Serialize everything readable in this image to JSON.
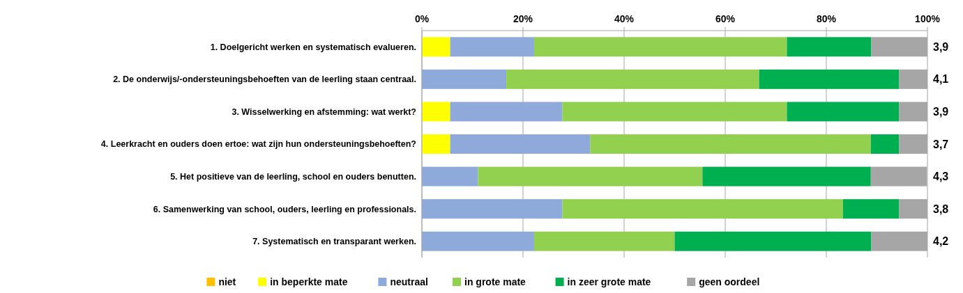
{
  "chart_data": {
    "type": "bar",
    "orientation": "horizontal",
    "stacked": true,
    "categories": [
      "1. Doelgericht werken en systematisch evalueren.",
      "2. De onderwijs/-ondersteuningsbehoeften van de leerling staan centraal.",
      "3. Wisselwerking en afstemming: wat werkt?",
      "4. Leerkracht en ouders doen ertoe: wat zijn hun ondersteuningsbehoeften?",
      "5. Het positieve van de leerling, school en ouders benutten.",
      "6. Samenwerking van school, ouders, leerling en professionals.",
      "7. Systematisch en transparant werken."
    ],
    "series": [
      {
        "name": "niet",
        "color": "#ffc000",
        "values": [
          0,
          0,
          0,
          0,
          0,
          0,
          0
        ]
      },
      {
        "name": "in beperkte mate",
        "color": "#ffff00",
        "values": [
          5.6,
          0,
          5.6,
          5.6,
          0,
          0,
          0
        ]
      },
      {
        "name": "neutraal",
        "color": "#8eaadb",
        "values": [
          16.6,
          16.7,
          22.2,
          27.7,
          11.1,
          27.8,
          22.2
        ]
      },
      {
        "name": "in grote mate",
        "color": "#92d050",
        "values": [
          50,
          50,
          44.4,
          55.5,
          44.4,
          55.5,
          27.8
        ]
      },
      {
        "name": "in zeer grote mate",
        "color": "#00b050",
        "values": [
          16.7,
          27.7,
          22.2,
          5.6,
          33.3,
          11.1,
          38.9
        ]
      },
      {
        "name": "geen oordeel",
        "color": "#a6a6a6",
        "values": [
          11.1,
          5.6,
          5.6,
          5.6,
          11.1,
          5.6,
          11.1
        ]
      }
    ],
    "xlim": [
      0,
      100
    ],
    "xticks": [
      {
        "value": 0,
        "label": "0%"
      },
      {
        "value": 20,
        "label": "20%"
      },
      {
        "value": 40,
        "label": "40%"
      },
      {
        "value": 60,
        "label": "60%"
      },
      {
        "value": 80,
        "label": "80%"
      },
      {
        "value": 100,
        "label": "100%"
      }
    ],
    "grid": "x",
    "legend": "bottom",
    "annotations": [
      "3,9",
      "4,1",
      "3,9",
      "3,7",
      "4,3",
      "3,8",
      "4,2"
    ]
  }
}
